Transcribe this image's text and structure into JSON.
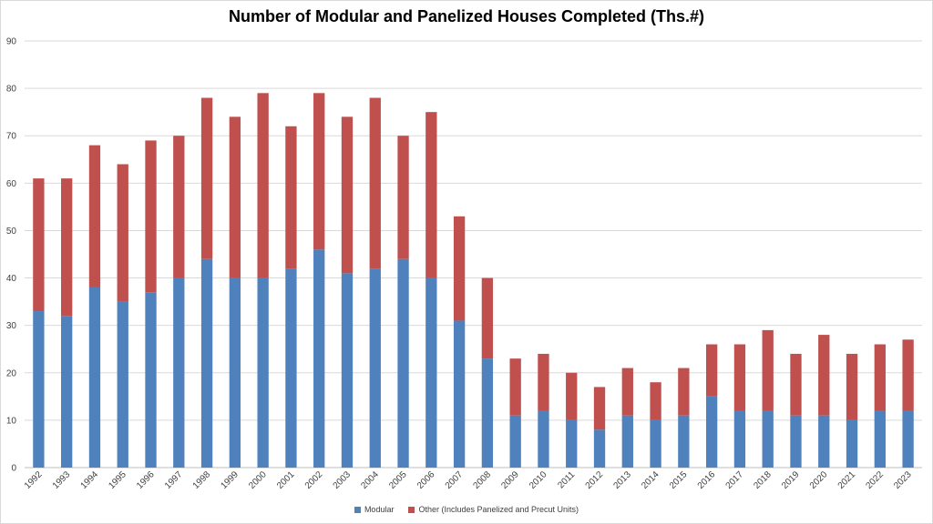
{
  "chart_data": {
    "type": "bar",
    "stacked": true,
    "title": "Number of Modular and Panelized Houses Completed (Ths.#)",
    "xlabel": "",
    "ylabel": "",
    "ylim": [
      0,
      90
    ],
    "yticks": [
      0,
      10,
      20,
      30,
      40,
      50,
      60,
      70,
      80,
      90
    ],
    "grid": true,
    "legend_position": "bottom",
    "categories": [
      "1992",
      "1993",
      "1994",
      "1995",
      "1996",
      "1997",
      "1998",
      "1999",
      "2000",
      "2001",
      "2002",
      "2003",
      "2004",
      "2005",
      "2006",
      "2007",
      "2008",
      "2009",
      "2010",
      "2011",
      "2012",
      "2013",
      "2014",
      "2015",
      "2016",
      "2017",
      "2018",
      "2019",
      "2020",
      "2021",
      "2022",
      "2023"
    ],
    "series": [
      {
        "name": "Modular",
        "color": "#4f81bd",
        "values": [
          33,
          32,
          38,
          35,
          37,
          40,
          44,
          40,
          40,
          42,
          46,
          41,
          42,
          44,
          40,
          31,
          23,
          11,
          12,
          10,
          8,
          11,
          10,
          11,
          15,
          12,
          12,
          11,
          11,
          10,
          12,
          12
        ]
      },
      {
        "name": "Other (Includes Panelized and Precut Units)",
        "color": "#c0504d",
        "values": [
          28,
          29,
          30,
          29,
          32,
          30,
          34,
          34,
          39,
          30,
          33,
          33,
          36,
          26,
          35,
          22,
          17,
          12,
          12,
          10,
          9,
          10,
          8,
          10,
          11,
          14,
          17,
          13,
          17,
          14,
          14,
          15
        ]
      }
    ]
  }
}
